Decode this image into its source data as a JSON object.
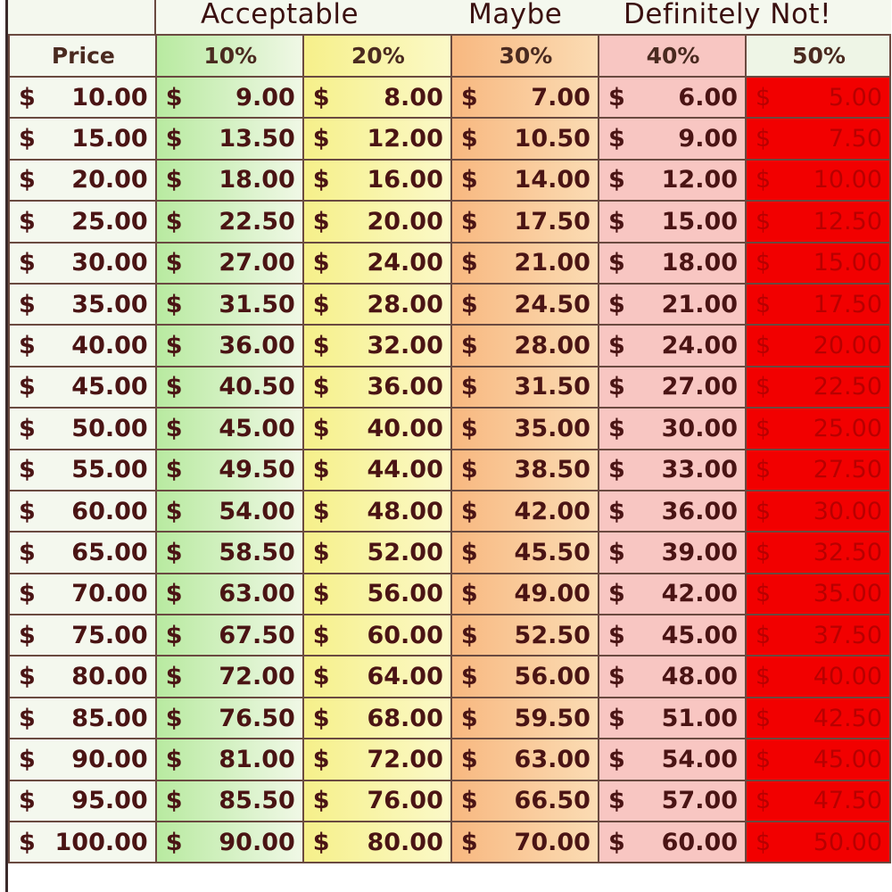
{
  "header_labels": {
    "acceptable": "Acceptable",
    "maybe": "Maybe",
    "definitely_not": "Definitely Not!"
  },
  "columns": [
    "Price",
    "10%",
    "20%",
    "30%",
    "40%",
    "50%"
  ],
  "currency_symbol": "$",
  "colors": {
    "col_10": "#b8eaa0",
    "col_20": "#f6f08a",
    "col_30": "#f8b880",
    "col_40": "#f8c6c2",
    "col_50": "#f20000",
    "text": "#4a1414"
  },
  "rows": [
    [
      "10.00",
      "9.00",
      "8.00",
      "7.00",
      "6.00",
      "5.00"
    ],
    [
      "15.00",
      "13.50",
      "12.00",
      "10.50",
      "9.00",
      "7.50"
    ],
    [
      "20.00",
      "18.00",
      "16.00",
      "14.00",
      "12.00",
      "10.00"
    ],
    [
      "25.00",
      "22.50",
      "20.00",
      "17.50",
      "15.00",
      "12.50"
    ],
    [
      "30.00",
      "27.00",
      "24.00",
      "21.00",
      "18.00",
      "15.00"
    ],
    [
      "35.00",
      "31.50",
      "28.00",
      "24.50",
      "21.00",
      "17.50"
    ],
    [
      "40.00",
      "36.00",
      "32.00",
      "28.00",
      "24.00",
      "20.00"
    ],
    [
      "45.00",
      "40.50",
      "36.00",
      "31.50",
      "27.00",
      "22.50"
    ],
    [
      "50.00",
      "45.00",
      "40.00",
      "35.00",
      "30.00",
      "25.00"
    ],
    [
      "55.00",
      "49.50",
      "44.00",
      "38.50",
      "33.00",
      "27.50"
    ],
    [
      "60.00",
      "54.00",
      "48.00",
      "42.00",
      "36.00",
      "30.00"
    ],
    [
      "65.00",
      "58.50",
      "52.00",
      "45.50",
      "39.00",
      "32.50"
    ],
    [
      "70.00",
      "63.00",
      "56.00",
      "49.00",
      "42.00",
      "35.00"
    ],
    [
      "75.00",
      "67.50",
      "60.00",
      "52.50",
      "45.00",
      "37.50"
    ],
    [
      "80.00",
      "72.00",
      "64.00",
      "56.00",
      "48.00",
      "40.00"
    ],
    [
      "85.00",
      "76.50",
      "68.00",
      "59.50",
      "51.00",
      "42.50"
    ],
    [
      "90.00",
      "81.00",
      "72.00",
      "63.00",
      "54.00",
      "45.00"
    ],
    [
      "95.00",
      "85.50",
      "76.00",
      "66.50",
      "57.00",
      "47.50"
    ],
    [
      "100.00",
      "90.00",
      "80.00",
      "70.00",
      "60.00",
      "50.00"
    ]
  ]
}
